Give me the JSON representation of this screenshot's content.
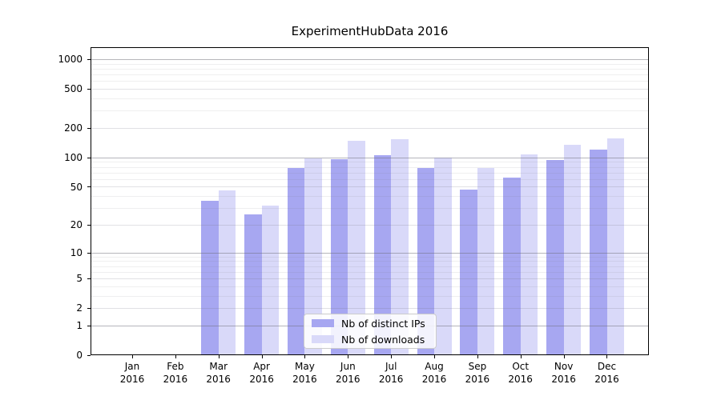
{
  "chart_data": {
    "type": "bar",
    "title": "ExperimentHubData 2016",
    "scale": "log10(1+x) pseudo-log y-axis",
    "categories": [
      "Jan",
      "Feb",
      "Mar",
      "Apr",
      "May",
      "Jun",
      "Jul",
      "Aug",
      "Sep",
      "Oct",
      "Nov",
      "Dec"
    ],
    "year_label": "2016",
    "series": [
      {
        "name": "Nb of distinct IPs",
        "color": "#a7a7f1",
        "values": [
          0,
          0,
          36,
          26,
          78,
          96,
          105,
          78,
          47,
          62,
          95,
          120
        ]
      },
      {
        "name": "Nb of downloads",
        "color": "#d9d9f9",
        "values": [
          0,
          0,
          46,
          32,
          98,
          148,
          153,
          100,
          78,
          108,
          135,
          158
        ]
      }
    ],
    "y_ticks": [
      0,
      1,
      2,
      5,
      10,
      20,
      50,
      100,
      200,
      500,
      1000
    ],
    "ylim": [
      0,
      1000
    ],
    "xlabel": "",
    "ylabel": "",
    "grid": "on",
    "legend_position": "bottom-center-inside"
  },
  "colors": {
    "background": "#ffffff",
    "axis": "#000000",
    "major_grid": "#8c8c96",
    "minor_grid": "#e8e8ec",
    "text": "#000000"
  }
}
